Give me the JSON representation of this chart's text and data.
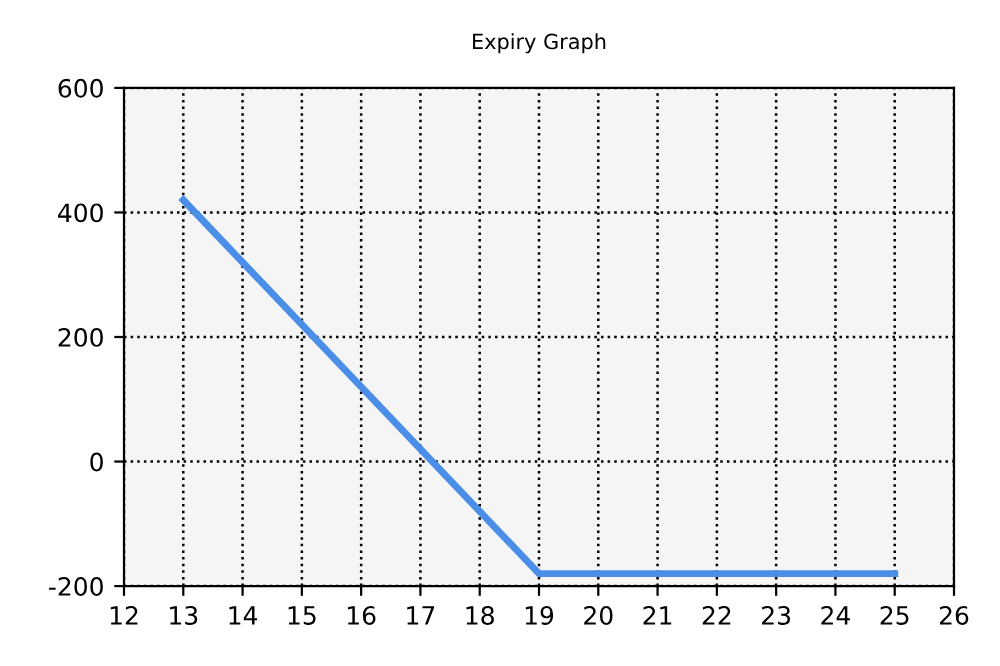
{
  "chart_data": {
    "type": "line",
    "title": "Expiry Graph",
    "x": [
      13,
      19,
      25
    ],
    "series": [
      {
        "color": "#4a8ee8",
        "values": [
          420,
          -180,
          -180
        ]
      }
    ],
    "xlim": [
      12,
      26
    ],
    "xticks": [
      12,
      13,
      14,
      15,
      16,
      17,
      18,
      19,
      20,
      21,
      22,
      23,
      24,
      25,
      26
    ],
    "ylim": [
      -200,
      600
    ],
    "yticks": [
      -200,
      0,
      200,
      400,
      600
    ],
    "grid": true,
    "line_style": "solid",
    "marker": "none"
  }
}
